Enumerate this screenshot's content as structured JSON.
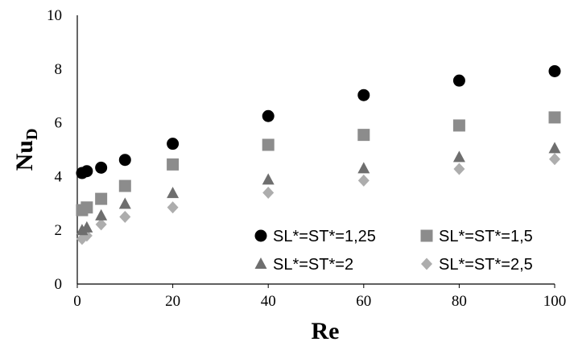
{
  "chart_data": {
    "type": "scatter",
    "title": "",
    "xlabel": "Re",
    "ylabel_main": "Nu",
    "ylabel_sub": "D",
    "xlim": [
      0,
      100
    ],
    "ylim": [
      0,
      10
    ],
    "xticks": [
      0,
      20,
      40,
      60,
      80,
      100
    ],
    "yticks": [
      0,
      2,
      4,
      6,
      8,
      10
    ],
    "grid": false,
    "legend_position": "bottom-right",
    "series": [
      {
        "name": "SL*=ST*=1,25",
        "marker": "circle",
        "color": "#000000",
        "x": [
          1,
          2,
          5,
          10,
          20,
          40,
          60,
          80,
          100
        ],
        "y": [
          4.13,
          4.2,
          4.33,
          4.62,
          5.22,
          6.25,
          7.03,
          7.57,
          7.92
        ]
      },
      {
        "name": "SL*=ST*=1,5",
        "marker": "square",
        "color": "#8c8c8c",
        "x": [
          1,
          2,
          5,
          10,
          20,
          40,
          60,
          80,
          100
        ],
        "y": [
          2.75,
          2.85,
          3.17,
          3.65,
          4.45,
          5.18,
          5.55,
          5.9,
          6.2
        ]
      },
      {
        "name": "SL*=ST*=2",
        "marker": "triangle",
        "color": "#6e6e6e",
        "x": [
          1,
          2,
          5,
          10,
          20,
          40,
          60,
          80,
          100
        ],
        "y": [
          2.0,
          2.1,
          2.55,
          2.98,
          3.38,
          3.88,
          4.3,
          4.72,
          5.05
        ]
      },
      {
        "name": "SL*=ST*=2,5",
        "marker": "diamond",
        "color": "#adadad",
        "x": [
          1,
          2,
          5,
          10,
          20,
          40,
          60,
          80,
          100
        ],
        "y": [
          1.68,
          1.8,
          2.22,
          2.5,
          2.85,
          3.4,
          3.85,
          4.28,
          4.65
        ]
      }
    ]
  }
}
